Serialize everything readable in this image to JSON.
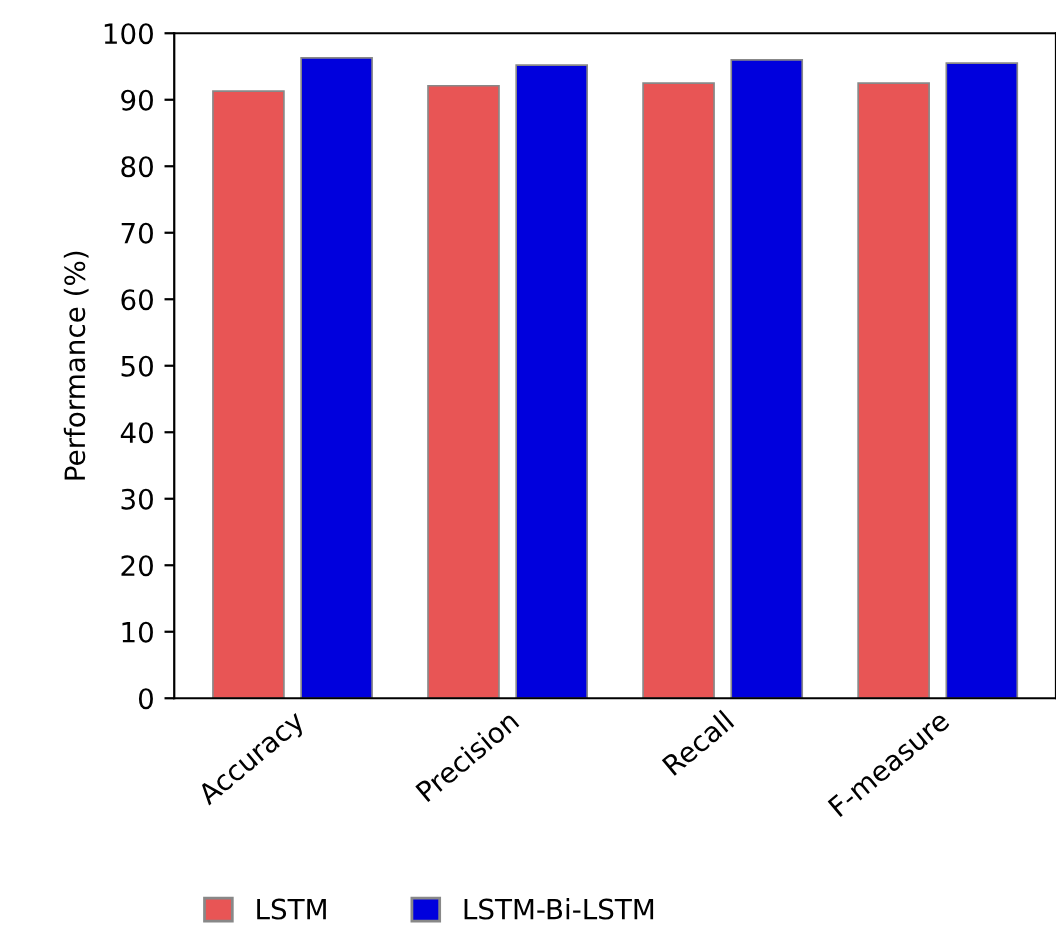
{
  "chart_data": {
    "type": "bar",
    "ylabel": "Performance (%)",
    "categories": [
      "Accuracy",
      "Precision",
      "Recall",
      "F-measure"
    ],
    "series": [
      {
        "name": "LSTM",
        "color": "#e85555",
        "values": [
          91.3,
          92.1,
          92.5,
          92.5
        ]
      },
      {
        "name": "LSTM-Bi-LSTM",
        "color": "#0000dd",
        "values": [
          96.3,
          95.2,
          96.0,
          95.5
        ]
      }
    ],
    "ylim": [
      0,
      100
    ],
    "yticks": [
      0,
      10,
      20,
      30,
      40,
      50,
      60,
      70,
      80,
      90,
      100
    ],
    "grid": false,
    "legend": "bottom left"
  }
}
